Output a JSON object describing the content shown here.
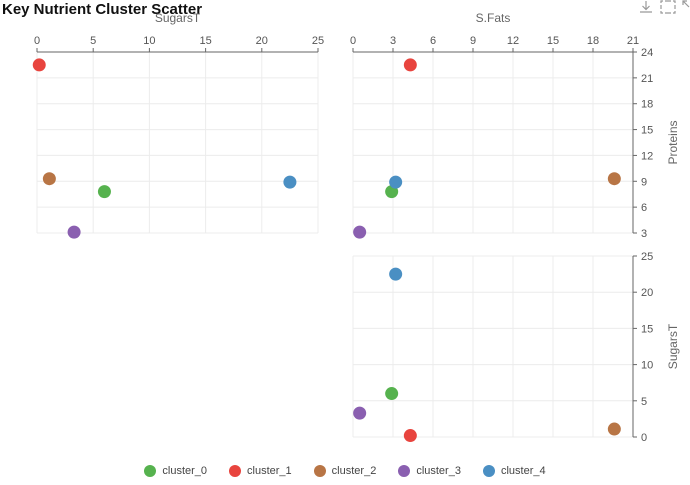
{
  "chart_data": {
    "type": "scatter",
    "title": "Key Nutrient Cluster Scatter",
    "categories": [
      "cluster_0",
      "cluster_1",
      "cluster_2",
      "cluster_3",
      "cluster_4"
    ],
    "colors": [
      "#56b24e",
      "#e8443e",
      "#b87545",
      "#8a5fb0",
      "#4a8fc3"
    ],
    "points": [
      {
        "cluster": "cluster_0",
        "SugarsT": 6.0,
        "S.Fats": 2.9,
        "Proteins": 7.8
      },
      {
        "cluster": "cluster_1",
        "SugarsT": 0.2,
        "S.Fats": 4.3,
        "Proteins": 22.5
      },
      {
        "cluster": "cluster_2",
        "SugarsT": 1.1,
        "S.Fats": 19.6,
        "Proteins": 9.3
      },
      {
        "cluster": "cluster_3",
        "SugarsT": 3.3,
        "S.Fats": 0.5,
        "Proteins": 3.1
      },
      {
        "cluster": "cluster_4",
        "SugarsT": 22.5,
        "S.Fats": 3.2,
        "Proteins": 8.9
      }
    ],
    "panels": [
      {
        "name": "panel-sugars-vs-proteins",
        "x": "SugarsT",
        "y": "Proteins"
      },
      {
        "name": "panel-fats-vs-proteins",
        "x": "S.Fats",
        "y": "Proteins"
      },
      {
        "name": "panel-fats-vs-sugars",
        "x": "S.Fats",
        "y": "SugarsT"
      }
    ],
    "axes": {
      "SugarsT": {
        "label": "SugarsT",
        "ticks": [
          0,
          5,
          10,
          15,
          20,
          25
        ],
        "range": [
          0,
          25
        ]
      },
      "S.Fats": {
        "label": "S.Fats",
        "ticks": [
          0,
          3,
          6,
          9,
          12,
          15,
          18,
          21
        ],
        "range": [
          0,
          21
        ]
      },
      "Proteins": {
        "label": "Proteins",
        "ticks": [
          3,
          6,
          9,
          12,
          15,
          18,
          21,
          24
        ],
        "range": [
          3,
          24
        ]
      }
    },
    "grid": true,
    "legend_position": "bottom"
  },
  "toolbar": {
    "icons": [
      "download-icon",
      "select-box-icon",
      "zoom-icon"
    ]
  }
}
